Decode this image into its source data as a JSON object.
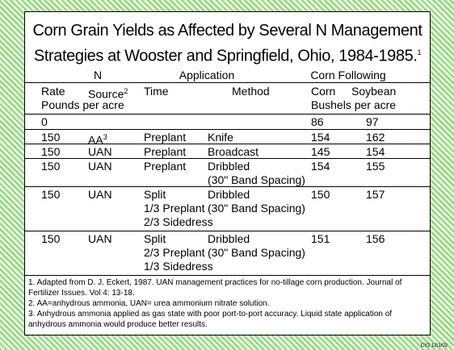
{
  "title": "Corn Grain Yields as Affected by Several N Management Strategies at Wooster and Springfield, Ohio, 1984-1985.",
  "title_sup": "1",
  "table": {
    "group_headers": [
      "N",
      "Application",
      "Corn Following"
    ],
    "columns": [
      "Rate",
      "Source",
      "Time",
      "Method",
      "Corn",
      "Soybean"
    ],
    "source_sup": "2",
    "units": [
      "Pounds per acre",
      "Bushels per acre"
    ],
    "rows": [
      {
        "rate": 0,
        "corn": 86,
        "soybean": 97
      },
      {
        "rate": 150,
        "source": "AA",
        "source_sup": "3",
        "time": [
          "Preplant"
        ],
        "method": [
          "Knife"
        ],
        "corn": 154,
        "soybean": 162
      },
      {
        "rate": 150,
        "source": "UAN",
        "time": [
          "Preplant"
        ],
        "method": [
          "Broadcast"
        ],
        "corn": 145,
        "soybean": 154
      },
      {
        "rate": 150,
        "source": "UAN",
        "time": [
          "Preplant"
        ],
        "method": [
          "Dribbled",
          "(30\" Band Spacing)"
        ],
        "corn": 154,
        "soybean": 155
      },
      {
        "rate": 150,
        "source": "UAN",
        "time": [
          "Split",
          "1/3 Preplant",
          "2/3 Sidedress"
        ],
        "method": [
          "Dribbled",
          "(30\" Band Spacing)"
        ],
        "corn": 150,
        "soybean": 157
      },
      {
        "rate": 150,
        "source": "UAN",
        "time": [
          "Split",
          "2/3 Preplant",
          "1/3 Sidedress"
        ],
        "method": [
          "Dribbled",
          "(30\" Band Spacing)"
        ],
        "corn": 151,
        "soybean": 156
      }
    ]
  },
  "footnotes": [
    "1. Adapted from D. J. Eckert, 1987. UAN management practices for no-tillage corn production. Journal of Fertilizer Issues. Vol 4: 13-18.",
    "2. AA=anhydrous ammonia, UAN= urea ammonium nitrate solution.",
    "3. Anhydrous ammonia applied as gas state with poor port-to-port accuracy.  Liquid state application of anhydrous ammonia would produce better results."
  ],
  "code": "CY2 12/1/02"
}
